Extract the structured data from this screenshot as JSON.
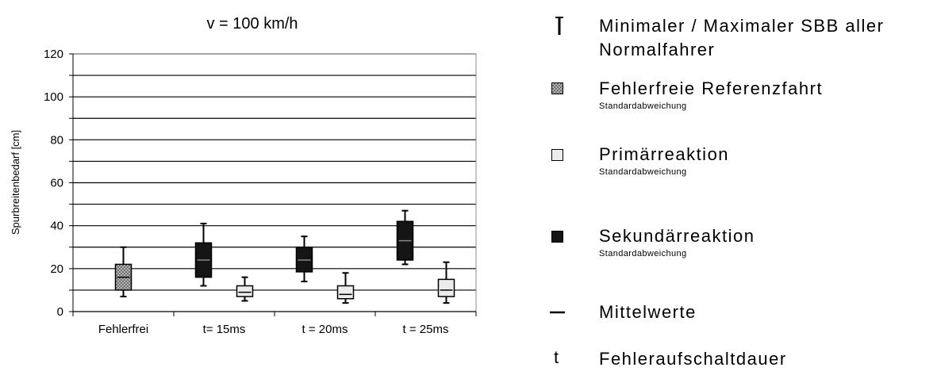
{
  "chart_data": {
    "type": "boxplot",
    "title": "v = 100 km/h",
    "xlabel": "",
    "ylabel": "Spurbreitenbedarf [cm]",
    "ylim": [
      0,
      120
    ],
    "yticks": [
      0,
      20,
      40,
      60,
      80,
      100,
      120
    ],
    "grid": true,
    "legend_position": "right",
    "categories": [
      "Fehlerfrei",
      "t= 15ms",
      "t = 20ms",
      "t = 25ms"
    ],
    "series": [
      {
        "name": "Fehlerfreie Referenzfahrt",
        "pattern": "checkered",
        "color": "#8a8a8a",
        "boxes": [
          {
            "category": "Fehlerfrei",
            "min": 7,
            "q1": 10,
            "mean": 16,
            "q3": 22,
            "max": 30
          }
        ]
      },
      {
        "name": "Sekundärreaktion",
        "color": "#151515",
        "boxes": [
          {
            "category": "t= 15ms",
            "min": 12,
            "q1": 16,
            "mean": 24,
            "q3": 32,
            "max": 41
          },
          {
            "category": "t = 20ms",
            "min": 14,
            "q1": 18.5,
            "mean": 24,
            "q3": 30,
            "max": 35
          },
          {
            "category": "t = 25ms",
            "min": 22,
            "q1": 24,
            "mean": 33,
            "q3": 42,
            "max": 47
          }
        ]
      },
      {
        "name": "Primärreaktion",
        "color": "#ececec",
        "boxes": [
          {
            "category": "t= 15ms",
            "min": 5,
            "q1": 7,
            "mean": 9,
            "q3": 12,
            "max": 16
          },
          {
            "category": "t = 20ms",
            "min": 4,
            "q1": 6,
            "mean": 8,
            "q3": 12,
            "max": 18
          },
          {
            "category": "t = 25ms",
            "min": 4,
            "q1": 7,
            "mean": 10,
            "q3": 15,
            "max": 23
          }
        ]
      }
    ]
  },
  "legend": {
    "minmax": {
      "symbol": "I",
      "line1": "Minimaler / Maximaler SBB aller",
      "line2": "Normalfahrer"
    },
    "reference": {
      "label": "Fehlerfreie Referenzfahrt",
      "sub": "Standardabweichung"
    },
    "primary": {
      "label": "Primärreaktion",
      "sub": "Standardabweichung"
    },
    "secondary": {
      "label": "Sekundärreaktion",
      "sub": "Standardabweichung"
    },
    "mean": {
      "label": "Mittelwerte"
    },
    "duration": {
      "symbol": "t",
      "label": "Fehleraufschaltdauer"
    }
  }
}
